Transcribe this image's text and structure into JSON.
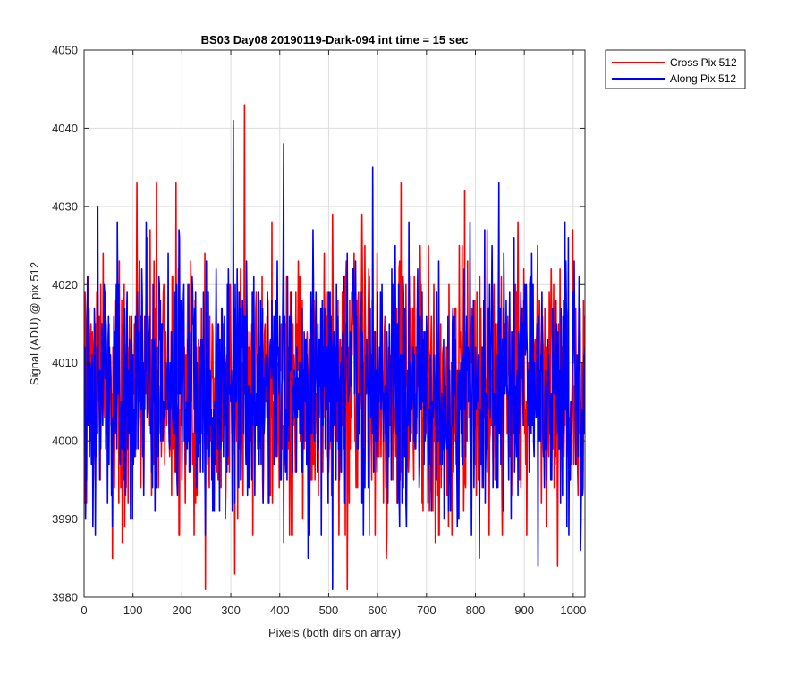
{
  "chart_data": {
    "type": "line",
    "title": "BS03 Day08 20190119-Dark-094 int time = 15 sec",
    "xlabel": "Pixels (both dirs on array)",
    "ylabel": "Signal (ADU) @ pix 512",
    "xlim": [
      0,
      1024
    ],
    "ylim": [
      3980,
      4050
    ],
    "xticks": [
      0,
      100,
      200,
      300,
      400,
      500,
      600,
      700,
      800,
      900,
      1000
    ],
    "yticks": [
      3980,
      3990,
      4000,
      4010,
      4020,
      4030,
      4040,
      4050
    ],
    "grid": true,
    "legend_position": "outside-top-right",
    "noise_center": 4007,
    "series": [
      {
        "name": "Cross Pix 512",
        "color": "#ff0000",
        "notable_points": [
          {
            "x": 58,
            "y": 3985
          },
          {
            "x": 78,
            "y": 3987
          },
          {
            "x": 108,
            "y": 4033
          },
          {
            "x": 148,
            "y": 4033
          },
          {
            "x": 188,
            "y": 4033
          },
          {
            "x": 248,
            "y": 3981
          },
          {
            "x": 308,
            "y": 3983
          },
          {
            "x": 328,
            "y": 4043
          },
          {
            "x": 408,
            "y": 3987
          },
          {
            "x": 508,
            "y": 4029
          },
          {
            "x": 538,
            "y": 3981
          },
          {
            "x": 568,
            "y": 4029
          },
          {
            "x": 618,
            "y": 3985
          },
          {
            "x": 648,
            "y": 4033
          },
          {
            "x": 718,
            "y": 3987
          },
          {
            "x": 778,
            "y": 4032
          },
          {
            "x": 828,
            "y": 3988
          },
          {
            "x": 968,
            "y": 3984
          },
          {
            "x": 1010,
            "y": 3993
          }
        ]
      },
      {
        "name": "Along Pix 512",
        "color": "#0000ff",
        "notable_points": [
          {
            "x": 18,
            "y": 3989
          },
          {
            "x": 28,
            "y": 4030
          },
          {
            "x": 68,
            "y": 4028
          },
          {
            "x": 148,
            "y": 3994
          },
          {
            "x": 248,
            "y": 3988
          },
          {
            "x": 305,
            "y": 4041
          },
          {
            "x": 408,
            "y": 4038
          },
          {
            "x": 458,
            "y": 3985
          },
          {
            "x": 508,
            "y": 3981
          },
          {
            "x": 590,
            "y": 4035
          },
          {
            "x": 808,
            "y": 3985
          },
          {
            "x": 848,
            "y": 4033
          },
          {
            "x": 928,
            "y": 3984
          },
          {
            "x": 1015,
            "y": 3986
          }
        ]
      }
    ]
  }
}
